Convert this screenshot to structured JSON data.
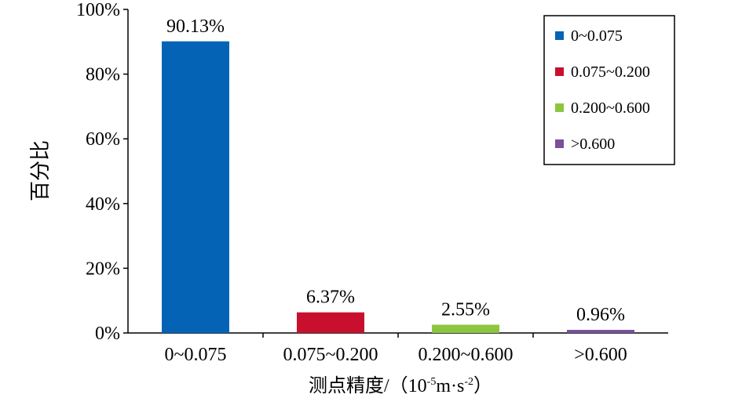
{
  "chart_data": {
    "type": "bar",
    "categories": [
      "0~0.075",
      "0.075~0.200",
      "0.200~0.600",
      ">0.600"
    ],
    "values": [
      90.13,
      6.37,
      2.55,
      0.96
    ],
    "value_labels": [
      "90.13%",
      "6.37%",
      "2.55%",
      "0.96%"
    ],
    "colors": [
      "#0563b6",
      "#c8102e",
      "#8cc63f",
      "#7a4f9c"
    ],
    "ylabel": "百分比",
    "xlabel": "测点精度/（10",
    "xlabel_sup1": "-5",
    "xlabel_mid": "m·s",
    "xlabel_sup2": "-2",
    "xlabel_end": "）",
    "ylim": [
      0,
      100
    ],
    "yticks": [
      "0%",
      "20%",
      "40%",
      "60%",
      "80%",
      "100%"
    ],
    "legend_position": "top-right",
    "legend": [
      "0~0.075",
      "0.075~0.200",
      "0.200~0.600",
      ">0.600"
    ]
  }
}
